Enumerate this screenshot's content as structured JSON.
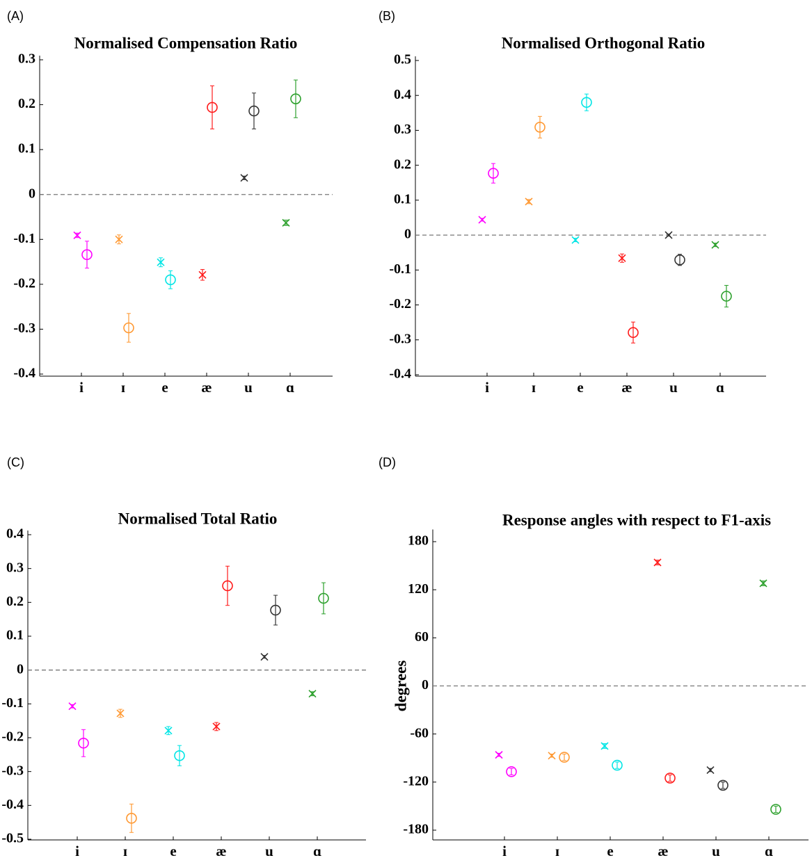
{
  "chart_data": [
    {
      "panel": "(A)",
      "type": "scatter",
      "title": "Normalised Compensation Ratio",
      "categories": [
        "i",
        "ɪ",
        "e",
        "æ",
        "u",
        "ɑ"
      ],
      "colors": [
        "#ff00ff",
        "#ff9933",
        "#00e5e5",
        "#ff1a1a",
        "#333333",
        "#2ca02c"
      ],
      "series": [
        {
          "marker": "x",
          "values": [
            -0.091,
            -0.1,
            -0.151,
            -0.179,
            0.037,
            -0.063
          ],
          "errors": [
            0.005,
            0.01,
            0.01,
            0.012,
            0.004,
            0.006
          ]
        },
        {
          "marker": "o",
          "values": [
            -0.134,
            -0.297,
            -0.19,
            0.194,
            0.186,
            0.213
          ],
          "errors": [
            0.03,
            0.032,
            0.02,
            0.048,
            0.04,
            0.042
          ]
        }
      ],
      "ylim": [
        -0.4,
        0.3
      ],
      "yticks": [
        0.3,
        0.2,
        0.1,
        0,
        -0.1,
        -0.2,
        -0.3,
        -0.4
      ],
      "zero_line": true
    },
    {
      "panel": "(B)",
      "type": "scatter",
      "title": "Normalised Orthogonal Ratio",
      "categories": [
        "i",
        "ɪ",
        "e",
        "æ",
        "u",
        "ɑ"
      ],
      "colors": [
        "#ff00ff",
        "#ff9933",
        "#00e5e5",
        "#ff1a1a",
        "#333333",
        "#2ca02c"
      ],
      "series": [
        {
          "marker": "x",
          "values": [
            0.044,
            0.096,
            -0.014,
            -0.066,
            0,
            -0.028
          ],
          "errors": [
            0.004,
            0.006,
            0.005,
            0.012,
            0.003,
            0.005
          ]
        },
        {
          "marker": "o",
          "values": [
            0.177,
            0.309,
            0.38,
            -0.279,
            -0.071,
            -0.175
          ],
          "errors": [
            0.028,
            0.031,
            0.024,
            0.03,
            0.016,
            0.031
          ]
        }
      ],
      "ylim": [
        -0.4,
        0.5
      ],
      "yticks": [
        0.5,
        0.4,
        0.3,
        0.2,
        0.1,
        0,
        -0.1,
        -0.2,
        -0.3,
        -0.4
      ],
      "zero_line": true
    },
    {
      "panel": "(C)",
      "type": "scatter",
      "title": "Normalised Total Ratio",
      "categories": [
        "i",
        "ɪ",
        "e",
        "æ",
        "u",
        "ɑ"
      ],
      "colors": [
        "#ff00ff",
        "#ff9933",
        "#00e5e5",
        "#ff1a1a",
        "#333333",
        "#2ca02c"
      ],
      "series": [
        {
          "marker": "x",
          "values": [
            -0.107,
            -0.128,
            -0.179,
            -0.167,
            0.039,
            -0.07
          ],
          "errors": [
            0.005,
            0.012,
            0.012,
            0.012,
            0.004,
            0.006
          ]
        },
        {
          "marker": "o",
          "values": [
            -0.216,
            -0.438,
            -0.253,
            0.249,
            0.177,
            0.212
          ],
          "errors": [
            0.04,
            0.042,
            0.03,
            0.058,
            0.044,
            0.046
          ]
        }
      ],
      "ylim": [
        -0.5,
        0.4
      ],
      "yticks": [
        0.4,
        0.3,
        0.2,
        0.1,
        0,
        -0.1,
        -0.2,
        -0.3,
        -0.4,
        -0.5
      ],
      "zero_line": true
    },
    {
      "panel": "(D)",
      "type": "scatter",
      "title": "Response angles with respect to F1-axis",
      "ylabel": "degrees",
      "categories": [
        "i",
        "ɪ",
        "e",
        "æ",
        "u",
        "ɑ"
      ],
      "colors": [
        "#ff00ff",
        "#ff9933",
        "#00e5e5",
        "#ff1a1a",
        "#333333",
        "#2ca02c"
      ],
      "series": [
        {
          "marker": "x",
          "values": [
            -86,
            -87,
            -75,
            154,
            -105,
            128
          ],
          "errors": [
            2,
            2,
            3,
            3,
            2,
            3
          ]
        },
        {
          "marker": "o",
          "values": [
            -107,
            -89,
            -99,
            -115,
            -124,
            -154
          ],
          "errors": [
            4,
            4,
            4,
            4,
            4,
            4
          ]
        }
      ],
      "ylim": [
        -190,
        190
      ],
      "yticks": [
        180,
        120,
        60,
        0,
        -60,
        -120,
        -180
      ],
      "zero_line": true
    }
  ]
}
